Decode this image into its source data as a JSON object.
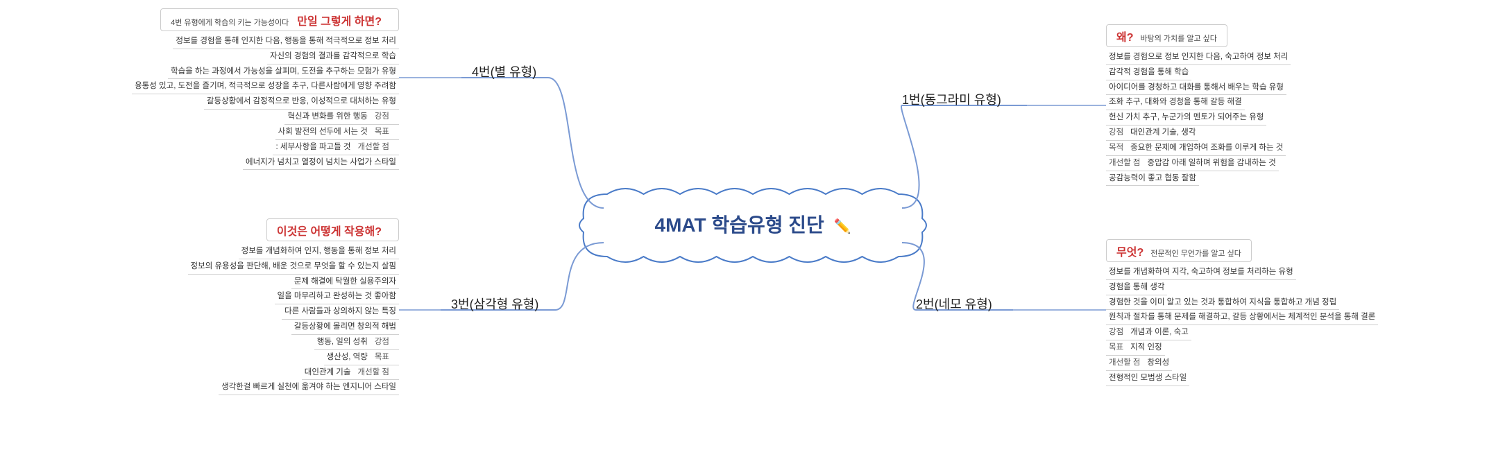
{
  "center": {
    "title": "4MAT 학습유형 진단",
    "title_color": "#2b4a8a"
  },
  "connectors": {
    "stroke_color": "#7a9ad4",
    "stroke_width": 2
  },
  "cloud": {
    "stroke": "#4a7bc8",
    "fill": "#ffffff"
  },
  "branches": {
    "b4": {
      "label": "4번(별 유형)",
      "header_pre": "4번 유형에게 학습의 키는 가능성이다",
      "header_question": "만일 그렇게 하면?",
      "header_color": "#cc3333",
      "items": [
        "정보를 경험을 통해 인지한 다음, 행동을 통해 적극적으로 정보 처리",
        "자신의 경험의 결과를 감각적으로 학습",
        "학습을 하는 과정에서 가능성을 살피며, 도전을 추구하는 모험가 유형",
        "융통성 있고, 도전을 즐기며, 적극적으로 성장을 추구, 다른사람에게 영향 주려함",
        "갈등상황에서 감정적으로 반응, 이성적으로 대처하는 유형",
        "혁신과 변화를 위한 행동|강점",
        "사회 발전의 선두에 서는 것|목표",
        ": 세부사항을 파고들 것|개선할 점",
        "에너지가 넘치고 열정이 넘치는 사업가 스타일"
      ]
    },
    "b3": {
      "label": "3번(삼각형 유형)",
      "header_question": "이것은 어떻게 작용해?",
      "header_color": "#cc3333",
      "items": [
        "정보를 개념화하여 인지, 행동을 통해 정보 처리",
        "정보의 유용성을 판단해, 배운 것으로 무엇을 할 수 있는지 살핌",
        "문제 해결에 탁월한 실용주의자",
        "일을 마무리하고 완성하는 것 좋아함",
        "다른 사람들과 상의하지 않는 특징",
        "갈등상황에 몰리면 창의적 해법",
        "행동, 일의 성취|강점",
        "생산성, 역량|목표",
        "대인관계 기술|개선할 점",
        "생각한걸 빠르게 실천에 옮겨야 하는 엔지니어 스타일"
      ]
    },
    "b1": {
      "label": "1번(동그라미 유형)",
      "header_question": "왜?",
      "header_subtitle": "바탕의 가치를 알고 싶다",
      "header_color": "#cc3333",
      "items": [
        "정보를 경험으로 정보 인지한 다음, 숙고하여 정보 처리",
        "감각적 경험을 통해 학습",
        "아이디어를 경청하고 대화를 통해서 배우는 학습 유형",
        "조화 추구, 대화와 경청을 통해 갈등 해결",
        "헌신 가치 추구, 누군가의 멘토가 되어주는 유형",
        "강점|대인관계 기술, 생각",
        "목적|중요한 문제에 개입하여 조화를 이루게 하는 것",
        "개선할 점|중압감 아래 일하며 위험을 감내하는 것",
        "공감능력이 좋고 협동 잘함"
      ]
    },
    "b2": {
      "label": "2번(네모 유형)",
      "header_question": "무엇?",
      "header_subtitle": "전문적인 무언가를 알고 싶다",
      "header_color": "#cc3333",
      "items": [
        "정보를 개념화하여 지각, 숙고하여 정보를 처리하는 유형",
        "경험을 통해 생각",
        "경험한 것을 이미 알고 있는 것과 통합하여 지식을 통합하고 개념 정립",
        "원칙과 절차를 통해 문제를 해결하고, 갈등 상황에서는 체계적인 분석을 통해 결론",
        "강점|개념과 이론, 숙고",
        "목표|지적 인정",
        "개선할 점|창의성",
        "전형적인 모범생 스타일"
      ]
    }
  }
}
